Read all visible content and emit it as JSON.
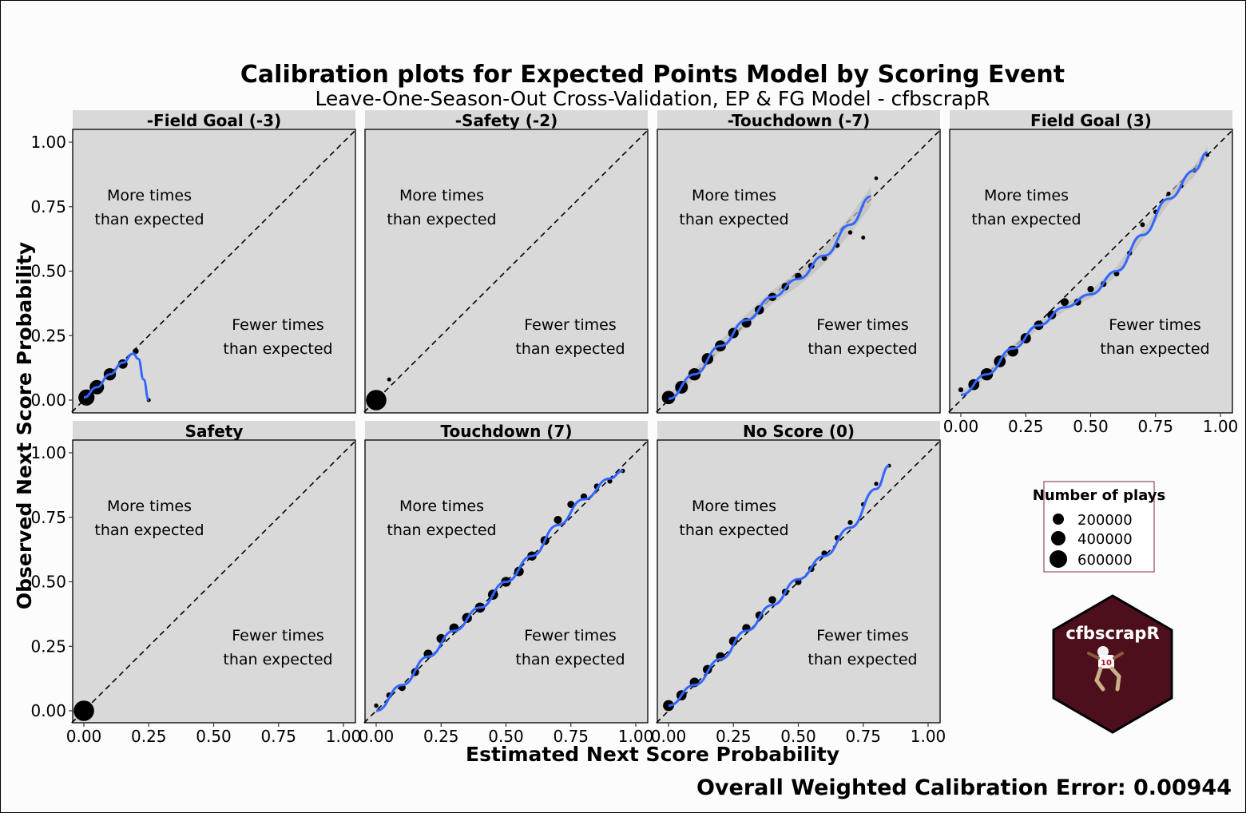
{
  "title": "Calibration plots for Expected Points Model by Scoring Event",
  "subtitle": "Leave-One-Season-Out Cross-Validation, EP & FG Model - cfbscrapR",
  "xlabel": "Estimated Next Score Probability",
  "ylabel": "Observed Next Score Probability",
  "annotation_above": [
    "More times",
    "than expected"
  ],
  "annotation_below": [
    "Fewer times",
    "than expected"
  ],
  "footer": "Overall Weighted Calibration Error: 0.00944",
  "legend": {
    "title": "Number of plays",
    "entries": [
      "200000",
      "400000",
      "600000"
    ]
  },
  "logo_text": "cfbscrapR",
  "colors": {
    "panel_bg": "#d9d9d9",
    "strip_bg": "#d9d9d9",
    "smooth_line": "#3366ff",
    "ribbon": "#bdbdbd",
    "logo_fill": "#4d0f1c",
    "points": "#000000"
  },
  "chart_data": {
    "type": "scatter",
    "facet_layout": "4 columns, 2 rows",
    "xlim": [
      0,
      1
    ],
    "ylim": [
      0,
      1
    ],
    "ticks": [
      "0.00",
      "0.25",
      "0.50",
      "0.75",
      "1.00"
    ],
    "reference_line": "y = x (dashed)",
    "smoother": "loess with confidence band",
    "size_legend": "Number of plays",
    "facets": [
      {
        "title": "-Field Goal (-3)",
        "x": [
          0.01,
          0.05,
          0.1,
          0.15,
          0.2,
          0.25
        ],
        "y": [
          0.01,
          0.05,
          0.1,
          0.14,
          0.19,
          0.0
        ],
        "n": [
          400000,
          300000,
          200000,
          100000,
          20000,
          3000
        ],
        "smooth_x": [
          0.0,
          0.05,
          0.1,
          0.15,
          0.19,
          0.21,
          0.23,
          0.25
        ],
        "smooth_y": [
          0.01,
          0.05,
          0.1,
          0.145,
          0.18,
          0.16,
          0.08,
          0.0
        ]
      },
      {
        "title": "-Safety (-2)",
        "x": [
          0.0,
          0.05
        ],
        "y": [
          0.0,
          0.08
        ],
        "n": [
          700000,
          3000
        ],
        "smooth_x": [],
        "smooth_y": []
      },
      {
        "title": "-Touchdown (-7)",
        "x": [
          0.0,
          0.05,
          0.1,
          0.15,
          0.2,
          0.25,
          0.3,
          0.35,
          0.4,
          0.45,
          0.5,
          0.55,
          0.6,
          0.65,
          0.7,
          0.75,
          0.8
        ],
        "y": [
          0.01,
          0.05,
          0.1,
          0.16,
          0.21,
          0.26,
          0.3,
          0.35,
          0.4,
          0.44,
          0.48,
          0.52,
          0.55,
          0.6,
          0.65,
          0.63,
          0.86
        ],
        "n": [
          250000,
          220000,
          200000,
          170000,
          150000,
          130000,
          110000,
          90000,
          70000,
          50000,
          35000,
          25000,
          15000,
          9000,
          5000,
          3000,
          1500
        ],
        "smooth_x": [
          0.0,
          0.1,
          0.2,
          0.3,
          0.4,
          0.5,
          0.6,
          0.7,
          0.78
        ],
        "smooth_y": [
          0.005,
          0.1,
          0.21,
          0.31,
          0.4,
          0.47,
          0.56,
          0.68,
          0.79
        ],
        "band": 0.025
      },
      {
        "title": "Field Goal (3)",
        "x": [
          0.0,
          0.05,
          0.1,
          0.15,
          0.2,
          0.25,
          0.3,
          0.35,
          0.4,
          0.45,
          0.5,
          0.55,
          0.6,
          0.65,
          0.7,
          0.75,
          0.8,
          0.85,
          0.9,
          0.95
        ],
        "y": [
          0.04,
          0.06,
          0.1,
          0.15,
          0.19,
          0.24,
          0.29,
          0.33,
          0.38,
          0.38,
          0.43,
          0.45,
          0.49,
          0.57,
          0.68,
          0.73,
          0.8,
          0.83,
          0.89,
          0.95
        ],
        "n": [
          10000,
          150000,
          200000,
          180000,
          150000,
          130000,
          100000,
          80000,
          60000,
          40000,
          30000,
          20000,
          15000,
          10000,
          8000,
          6000,
          4000,
          3000,
          2000,
          1500
        ],
        "smooth_x": [
          0.0,
          0.1,
          0.2,
          0.3,
          0.4,
          0.5,
          0.6,
          0.7,
          0.8,
          0.9,
          0.95
        ],
        "smooth_y": [
          0.02,
          0.1,
          0.2,
          0.29,
          0.36,
          0.41,
          0.5,
          0.64,
          0.78,
          0.89,
          0.96
        ],
        "band": 0.015
      },
      {
        "title": "Safety",
        "x": [
          0.0
        ],
        "y": [
          0.0
        ],
        "n": [
          700000
        ],
        "smooth_x": [],
        "smooth_y": []
      },
      {
        "title": "Touchdown (7)",
        "x": [
          0.0,
          0.05,
          0.1,
          0.15,
          0.2,
          0.25,
          0.3,
          0.35,
          0.4,
          0.45,
          0.5,
          0.55,
          0.6,
          0.65,
          0.7,
          0.75,
          0.8,
          0.85,
          0.9,
          0.95
        ],
        "y": [
          0.02,
          0.06,
          0.09,
          0.15,
          0.22,
          0.28,
          0.32,
          0.36,
          0.4,
          0.45,
          0.5,
          0.54,
          0.6,
          0.66,
          0.74,
          0.8,
          0.83,
          0.87,
          0.89,
          0.93
        ],
        "n": [
          5000,
          20000,
          40000,
          60000,
          80000,
          90000,
          100000,
          110000,
          120000,
          120000,
          110000,
          100000,
          90000,
          80000,
          60000,
          40000,
          30000,
          20000,
          10000,
          5000
        ],
        "smooth_x": [
          0.0,
          0.1,
          0.2,
          0.3,
          0.4,
          0.5,
          0.6,
          0.7,
          0.8,
          0.9,
          0.95
        ],
        "smooth_y": [
          0.0,
          0.1,
          0.21,
          0.31,
          0.4,
          0.5,
          0.6,
          0.72,
          0.82,
          0.9,
          0.93
        ]
      },
      {
        "title": "No Score (0)",
        "x": [
          0.0,
          0.05,
          0.1,
          0.15,
          0.2,
          0.25,
          0.3,
          0.35,
          0.4,
          0.45,
          0.5,
          0.55,
          0.6,
          0.65,
          0.7,
          0.75,
          0.8,
          0.85
        ],
        "y": [
          0.02,
          0.06,
          0.11,
          0.16,
          0.21,
          0.27,
          0.32,
          0.37,
          0.43,
          0.46,
          0.5,
          0.55,
          0.61,
          0.67,
          0.73,
          0.8,
          0.88,
          0.95
        ],
        "n": [
          150000,
          120000,
          100000,
          90000,
          80000,
          80000,
          70000,
          60000,
          50000,
          40000,
          30000,
          25000,
          20000,
          15000,
          10000,
          6000,
          4000,
          2000
        ],
        "smooth_x": [
          0.0,
          0.1,
          0.2,
          0.3,
          0.4,
          0.5,
          0.6,
          0.7,
          0.8,
          0.85
        ],
        "smooth_y": [
          0.02,
          0.1,
          0.2,
          0.31,
          0.41,
          0.51,
          0.6,
          0.71,
          0.86,
          0.95
        ]
      }
    ]
  }
}
